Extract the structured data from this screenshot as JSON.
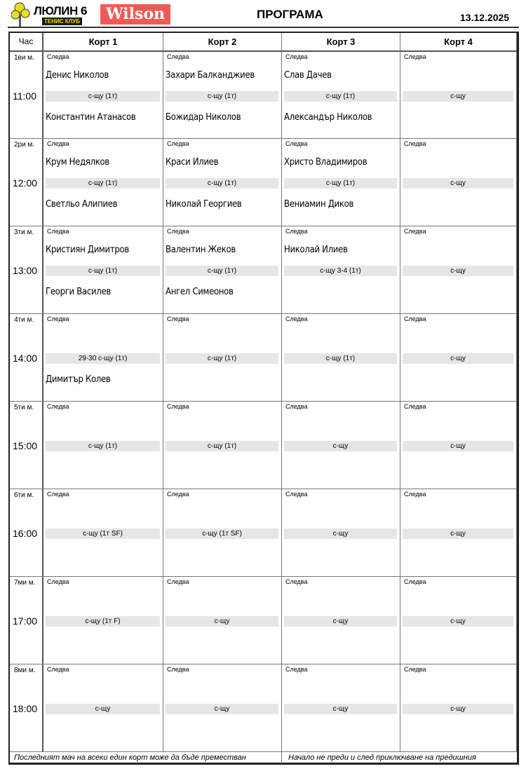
{
  "header": {
    "club_name": "ЛЮЛИН 6",
    "club_sub": "ТЕНИС КЛУБ",
    "sponsor": "Wilson",
    "title": "ПРОГРАМА",
    "date": "13.12.2025"
  },
  "columns": [
    "Час",
    "Корт 1",
    "Корт 2",
    "Корт 3",
    "Корт 4"
  ],
  "next_label": "Следва",
  "rows": [
    {
      "slot": "1ви м.",
      "time": "11:00",
      "courts": [
        {
          "p1": "Денис Николов",
          "match": "с-щу (1т)",
          "p2": "Константин Атанасов"
        },
        {
          "p1": "Захари Балканджиев",
          "match": "с-щу (1т)",
          "p2": "Божидар Николов"
        },
        {
          "p1": "Слав Дачев",
          "match": "с-щу (1т)",
          "p2": "Александър Николов"
        },
        {
          "p1": "",
          "match": "с-щу",
          "p2": ""
        }
      ]
    },
    {
      "slot": "2ри м.",
      "time": "12:00",
      "courts": [
        {
          "p1": "Крум Недялков",
          "match": "с-щу (1т)",
          "p2": "Светльо Алипиев"
        },
        {
          "p1": "Краси Илиев",
          "match": "с-щу (1т)",
          "p2": "Николай Георгиев"
        },
        {
          "p1": "Христо Владимиров",
          "match": "с-щу (1т)",
          "p2": "Вениамин Диков"
        },
        {
          "p1": "",
          "match": "с-щу",
          "p2": ""
        }
      ]
    },
    {
      "slot": "3ти м.",
      "time": "13:00",
      "courts": [
        {
          "p1": "Кристиян Димитров",
          "match": "с-щу (1т)",
          "p2": "Георги Василев"
        },
        {
          "p1": "Валентин Жеков",
          "match": "с-щу (1т)",
          "p2": "Ангел Симеонов"
        },
        {
          "p1": "Николай Илиев",
          "match": "с-щу  3-4 (1т)",
          "p2": ""
        },
        {
          "p1": "",
          "match": "с-щу",
          "p2": ""
        }
      ]
    },
    {
      "slot": "4ти м.",
      "time": "14:00",
      "courts": [
        {
          "p1": "",
          "match": "29-30  с-щу (1т)",
          "p2": "Димитър Колев"
        },
        {
          "p1": "",
          "match": "с-щу (1т)",
          "p2": ""
        },
        {
          "p1": "",
          "match": "с-щу (1т)",
          "p2": ""
        },
        {
          "p1": "",
          "match": "с-щу",
          "p2": ""
        }
      ]
    },
    {
      "slot": "5ти м.",
      "time": "15:00",
      "courts": [
        {
          "p1": "",
          "match": "с-щу (1т)",
          "p2": ""
        },
        {
          "p1": "",
          "match": "с-щу (1т)",
          "p2": ""
        },
        {
          "p1": "",
          "match": "с-щу",
          "p2": ""
        },
        {
          "p1": "",
          "match": "с-щу",
          "p2": ""
        }
      ]
    },
    {
      "slot": "6ти м.",
      "time": "16:00",
      "courts": [
        {
          "p1": "",
          "match": "с-щу (1т SF)",
          "p2": ""
        },
        {
          "p1": "",
          "match": "с-щу (1т SF)",
          "p2": ""
        },
        {
          "p1": "",
          "match": "с-щу",
          "p2": ""
        },
        {
          "p1": "",
          "match": "с-щу",
          "p2": ""
        }
      ]
    },
    {
      "slot": "7ми м.",
      "time": "17:00",
      "courts": [
        {
          "p1": "",
          "match": "с-щу (1т F)",
          "p2": ""
        },
        {
          "p1": "",
          "match": "с-щу",
          "p2": ""
        },
        {
          "p1": "",
          "match": "с-щу",
          "p2": ""
        },
        {
          "p1": "",
          "match": "с-щу",
          "p2": ""
        }
      ]
    },
    {
      "slot": "8ми м.",
      "time": "18:00",
      "courts": [
        {
          "p1": "",
          "match": "с-щу",
          "p2": ""
        },
        {
          "p1": "",
          "match": "с-щу",
          "p2": ""
        },
        {
          "p1": "",
          "match": "с-щу",
          "p2": ""
        },
        {
          "p1": "",
          "match": "с-щу",
          "p2": ""
        }
      ]
    }
  ],
  "footer": {
    "left": "Последният мач  на всеки един корт  може да бъде преместван",
    "right": "Начало не преди и след приключване на предишния"
  }
}
